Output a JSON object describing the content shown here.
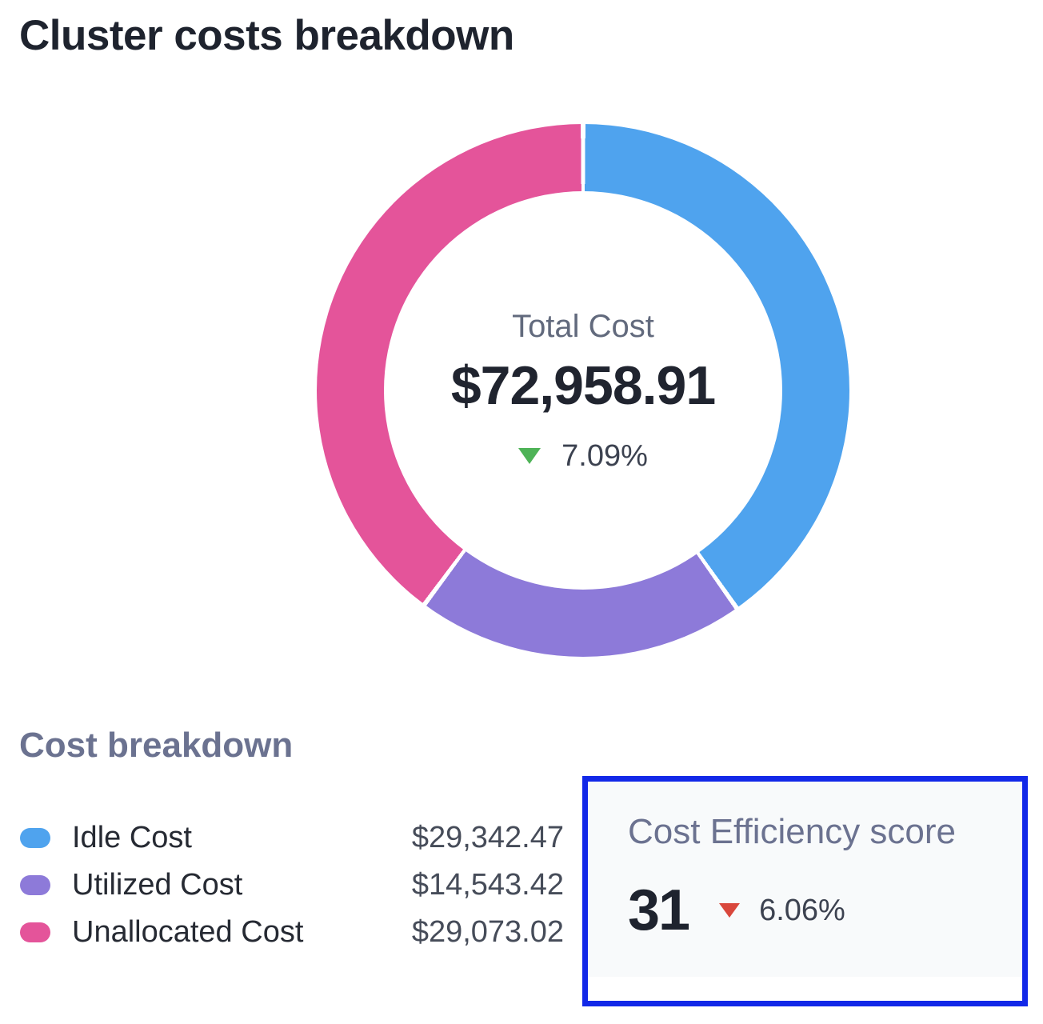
{
  "header": {
    "title": "Cluster costs breakdown"
  },
  "chart_data": {
    "type": "pie",
    "variant": "donut",
    "title": "Cluster costs breakdown",
    "center": {
      "label": "Total Cost",
      "value": "$72,958.91",
      "change_pct": "7.09%",
      "change_direction": "down",
      "change_color": "#4eb357"
    },
    "series": [
      {
        "name": "Idle Cost",
        "value": 29342.47,
        "display_value": "$29,342.47",
        "color": "#4fa3ee"
      },
      {
        "name": "Utilized Cost",
        "value": 14543.42,
        "display_value": "$14,543.42",
        "color": "#8d7ad9"
      },
      {
        "name": "Unallocated Cost",
        "value": 29073.02,
        "display_value": "$29,073.02",
        "color": "#e4549a"
      }
    ],
    "total": 72958.91,
    "start_angle_deg": 0,
    "clockwise": true,
    "segment_gap_deg": 1.0,
    "hole_ratio": 0.75,
    "legend_position": "bottom-left"
  },
  "breakdown": {
    "heading": "Cost breakdown"
  },
  "efficiency": {
    "title": "Cost Efficiency score",
    "score": "31",
    "change_pct": "6.06%",
    "change_direction": "down",
    "change_color": "#d9473c",
    "border_color": "#1228e8",
    "background_color": "#f8fafb"
  }
}
